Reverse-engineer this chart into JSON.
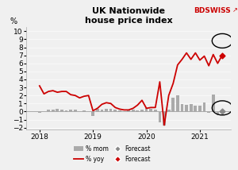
{
  "title": "UK Nationwide\nhouse price index",
  "ylabel": "%",
  "xlim": [
    2017.75,
    2021.58
  ],
  "ylim": [
    -2.2,
    10.5
  ],
  "yticks": [
    -2,
    -1,
    0,
    1,
    2,
    3,
    4,
    5,
    6,
    7,
    8,
    9,
    10
  ],
  "xtick_labels": [
    "2018",
    "2019",
    "2020",
    "2021"
  ],
  "xtick_positions": [
    2018,
    2019,
    2020,
    2021
  ],
  "bar_color": "#aaaaaa",
  "line_color": "#cc0000",
  "bdswiss_color": "#cc0000",
  "mom_data": [
    [
      2018.0,
      -0.2
    ],
    [
      2018.083,
      0.05
    ],
    [
      2018.167,
      0.2
    ],
    [
      2018.25,
      0.25
    ],
    [
      2018.333,
      0.3
    ],
    [
      2018.417,
      0.2
    ],
    [
      2018.5,
      0.15
    ],
    [
      2018.583,
      0.2
    ],
    [
      2018.667,
      0.2
    ],
    [
      2018.75,
      0.05
    ],
    [
      2018.833,
      0.1
    ],
    [
      2018.917,
      0.05
    ],
    [
      2019.0,
      -0.6
    ],
    [
      2019.083,
      0.35
    ],
    [
      2019.167,
      0.2
    ],
    [
      2019.25,
      0.3
    ],
    [
      2019.333,
      0.3
    ],
    [
      2019.417,
      0.2
    ],
    [
      2019.5,
      0.1
    ],
    [
      2019.583,
      0.0
    ],
    [
      2019.667,
      0.2
    ],
    [
      2019.75,
      0.2
    ],
    [
      2019.833,
      0.15
    ],
    [
      2019.917,
      0.2
    ],
    [
      2020.0,
      0.4
    ],
    [
      2020.083,
      0.3
    ],
    [
      2020.167,
      0.2
    ],
    [
      2020.25,
      -1.3
    ],
    [
      2020.333,
      -1.7
    ],
    [
      2020.417,
      0.2
    ],
    [
      2020.5,
      1.7
    ],
    [
      2020.583,
      2.0
    ],
    [
      2020.667,
      0.9
    ],
    [
      2020.75,
      0.8
    ],
    [
      2020.833,
      0.9
    ],
    [
      2020.917,
      0.7
    ],
    [
      2021.0,
      0.7
    ],
    [
      2021.083,
      1.1
    ],
    [
      2021.167,
      -0.2
    ],
    [
      2021.25,
      2.1
    ],
    [
      2021.333,
      -0.5
    ],
    [
      2021.417,
      0.0
    ]
  ],
  "yoy_data": [
    [
      2018.0,
      3.2
    ],
    [
      2018.083,
      2.2
    ],
    [
      2018.167,
      2.5
    ],
    [
      2018.25,
      2.6
    ],
    [
      2018.333,
      2.4
    ],
    [
      2018.417,
      2.5
    ],
    [
      2018.5,
      2.5
    ],
    [
      2018.583,
      2.1
    ],
    [
      2018.667,
      2.0
    ],
    [
      2018.75,
      1.7
    ],
    [
      2018.833,
      1.9
    ],
    [
      2018.917,
      2.0
    ],
    [
      2019.0,
      0.1
    ],
    [
      2019.083,
      0.4
    ],
    [
      2019.167,
      0.9
    ],
    [
      2019.25,
      1.1
    ],
    [
      2019.333,
      1.0
    ],
    [
      2019.417,
      0.5
    ],
    [
      2019.5,
      0.3
    ],
    [
      2019.583,
      0.2
    ],
    [
      2019.667,
      0.2
    ],
    [
      2019.75,
      0.4
    ],
    [
      2019.833,
      0.8
    ],
    [
      2019.917,
      1.4
    ],
    [
      2020.0,
      0.4
    ],
    [
      2020.083,
      0.5
    ],
    [
      2020.167,
      0.5
    ],
    [
      2020.25,
      3.7
    ],
    [
      2020.333,
      -1.7
    ],
    [
      2020.417,
      2.0
    ],
    [
      2020.5,
      3.5
    ],
    [
      2020.583,
      5.8
    ],
    [
      2020.667,
      6.5
    ],
    [
      2020.75,
      7.3
    ],
    [
      2020.833,
      6.5
    ],
    [
      2020.917,
      7.3
    ],
    [
      2021.0,
      6.4
    ],
    [
      2021.083,
      6.9
    ],
    [
      2021.167,
      5.7
    ],
    [
      2021.25,
      7.1
    ],
    [
      2021.333,
      6.0
    ],
    [
      2021.417,
      7.0
    ]
  ],
  "forecast_mom_x": 2021.417,
  "forecast_mom_y": 0.0,
  "forecast_yoy_x": 2021.417,
  "forecast_yoy_y": 7.0,
  "background_color": "#f0f0f0"
}
